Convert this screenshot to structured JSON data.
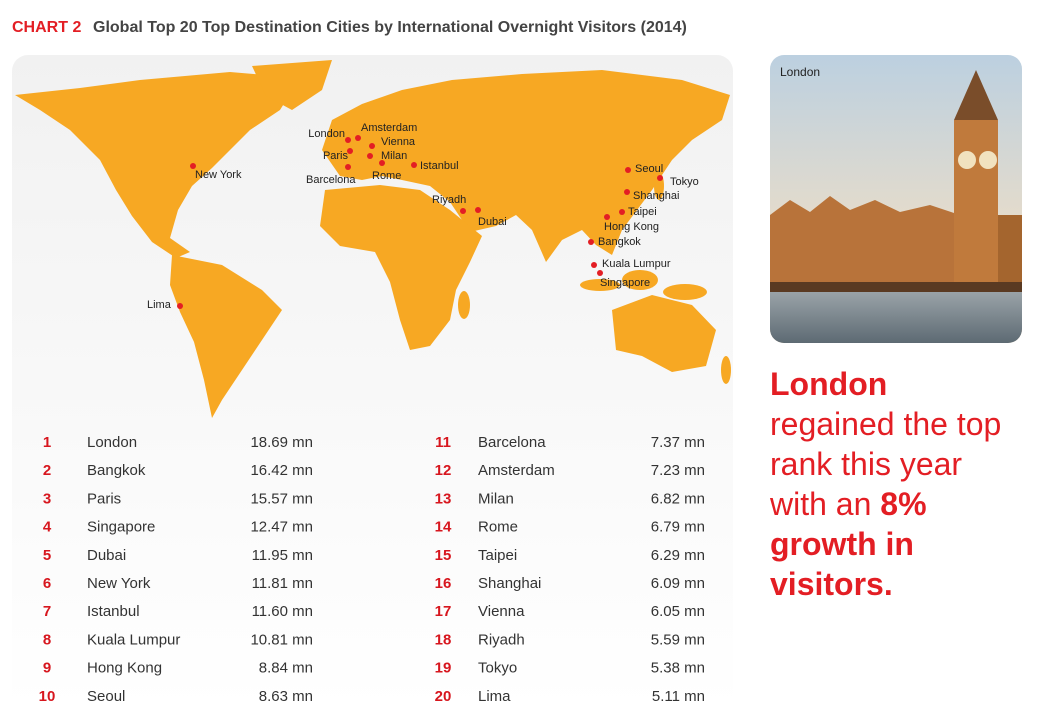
{
  "header": {
    "label": "CHART 2",
    "title": "Global Top 20 Top Destination Cities by International Overnight Visitors (2014)"
  },
  "map": {
    "cities": [
      "London",
      "Amsterdam",
      "Vienna",
      "Paris",
      "Milan",
      "Istanbul",
      "Barcelona",
      "Rome",
      "New York",
      "Riyadh",
      "Dubai",
      "Seoul",
      "Tokyo",
      "Shanghai",
      "Taipei",
      "Hong Kong",
      "Bangkok",
      "Kuala Lumpur",
      "Singapore",
      "Lima"
    ]
  },
  "table": {
    "rows": [
      {
        "rank": 1,
        "city": "London",
        "visitors": "18.69 mn"
      },
      {
        "rank": 2,
        "city": "Bangkok",
        "visitors": "16.42 mn"
      },
      {
        "rank": 3,
        "city": "Paris",
        "visitors": "15.57 mn"
      },
      {
        "rank": 4,
        "city": "Singapore",
        "visitors": "12.47 mn"
      },
      {
        "rank": 5,
        "city": "Dubai",
        "visitors": "11.95 mn"
      },
      {
        "rank": 6,
        "city": "New York",
        "visitors": "11.81 mn"
      },
      {
        "rank": 7,
        "city": "Istanbul",
        "visitors": "11.60 mn"
      },
      {
        "rank": 8,
        "city": "Kuala Lumpur",
        "visitors": "10.81 mn"
      },
      {
        "rank": 9,
        "city": "Hong Kong",
        "visitors": "8.84 mn"
      },
      {
        "rank": 10,
        "city": "Seoul",
        "visitors": "8.63 mn"
      },
      {
        "rank": 11,
        "city": "Barcelona",
        "visitors": "7.37 mn"
      },
      {
        "rank": 12,
        "city": "Amsterdam",
        "visitors": "7.23 mn"
      },
      {
        "rank": 13,
        "city": "Milan",
        "visitors": "6.82 mn"
      },
      {
        "rank": 14,
        "city": "Rome",
        "visitors": "6.79 mn"
      },
      {
        "rank": 15,
        "city": "Taipei",
        "visitors": "6.29 mn"
      },
      {
        "rank": 16,
        "city": "Shanghai",
        "visitors": "6.09 mn"
      },
      {
        "rank": 17,
        "city": "Vienna",
        "visitors": "6.05 mn"
      },
      {
        "rank": 18,
        "city": "Riyadh",
        "visitors": "5.59 mn"
      },
      {
        "rank": 19,
        "city": "Tokyo",
        "visitors": "5.38 mn"
      },
      {
        "rank": 20,
        "city": "Lima",
        "visitors": "5.11 mn"
      }
    ]
  },
  "photo": {
    "caption": "London"
  },
  "side_text": {
    "highlight": "London",
    "body": "regained the top rank this year with an",
    "emphasis": "8% growth in visitors."
  }
}
